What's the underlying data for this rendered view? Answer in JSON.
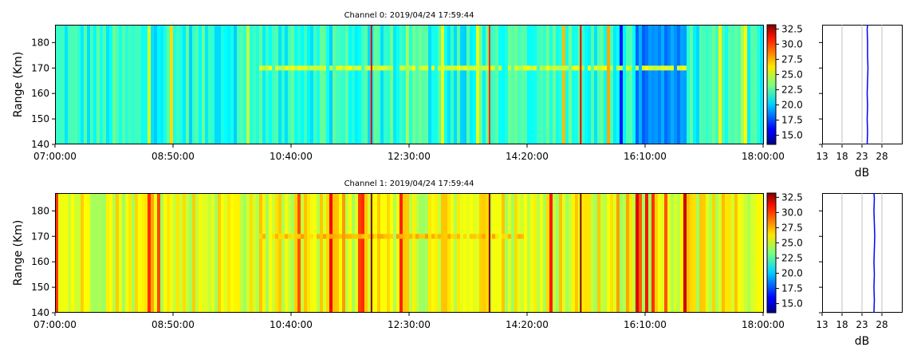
{
  "chart_data": [
    {
      "type": "heatmap",
      "title": "Channel 0: 2019/04/24 17:59:44",
      "xlabel": "",
      "ylabel": "Range (Km)",
      "x_ticks": [
        "07:00:00",
        "08:50:00",
        "10:40:00",
        "12:30:00",
        "14:20:00",
        "16:10:00",
        "18:00:00"
      ],
      "x_range": [
        "07:00:00",
        "18:00:00"
      ],
      "y_ticks": [
        140,
        150,
        160,
        170,
        180
      ],
      "ylim": [
        140,
        187
      ],
      "colorbar": {
        "ticks": [
          "15.0",
          "17.5",
          "20.0",
          "22.5",
          "25.0",
          "27.5",
          "30.0",
          "32.5"
        ],
        "range": [
          13.5,
          33.2
        ],
        "colormap": "jet"
      },
      "base_level_db": 21.5,
      "layer": {
        "range_km": 170,
        "level_db": 25,
        "start": "10:10:00",
        "end": "16:50:00"
      },
      "bright_stripes": [
        {
          "time": "11:55:00",
          "level_db": 31
        },
        {
          "time": "13:45:00",
          "level_db": 30
        },
        {
          "time": "15:10:00",
          "level_db": 31
        }
      ],
      "dark_bands": [
        {
          "start": "15:45:00",
          "end": "15:50:00",
          "level_db": 16.5
        },
        {
          "start": "16:00:00",
          "end": "16:50:00",
          "level_db": 18.5
        }
      ],
      "profile": {
        "xlabel": "dB",
        "x_ticks": [
          13,
          18,
          23,
          28
        ],
        "xlim": [
          13,
          33
        ],
        "ylim": [
          140,
          187
        ],
        "grid": true,
        "range_km": [
          140,
          145,
          150,
          155,
          160,
          165,
          170,
          175,
          180,
          185,
          187
        ],
        "db": [
          24.3,
          24.4,
          24.3,
          24.4,
          24.3,
          24.4,
          24.5,
          24.4,
          24.4,
          24.3,
          24.4
        ]
      }
    },
    {
      "type": "heatmap",
      "title": "Channel 1: 2019/04/24 17:59:44",
      "xlabel": "",
      "ylabel": "Range (Km)",
      "x_ticks": [
        "07:00:00",
        "08:50:00",
        "10:40:00",
        "12:30:00",
        "14:20:00",
        "16:10:00",
        "18:00:00"
      ],
      "x_range": [
        "07:00:00",
        "18:00:00"
      ],
      "y_ticks": [
        140,
        150,
        160,
        170,
        180
      ],
      "ylim": [
        140,
        187
      ],
      "colorbar": {
        "ticks": [
          "15.0",
          "17.5",
          "20.0",
          "22.5",
          "25.0",
          "27.5",
          "30.0",
          "32.5"
        ],
        "range": [
          13.5,
          33.2
        ],
        "colormap": "jet"
      },
      "base_level_db": 25.5,
      "layer": {
        "range_km": 170,
        "level_db": 27,
        "start": "10:10:00",
        "end": "14:20:00"
      },
      "bright_stripes": [
        {
          "time": "11:55:00",
          "level_db": 33
        },
        {
          "time": "13:45:00",
          "level_db": 33
        },
        {
          "time": "15:10:00",
          "level_db": 33
        }
      ],
      "dark_bands": [],
      "profile": {
        "xlabel": "dB",
        "x_ticks": [
          13,
          18,
          23,
          28
        ],
        "xlim": [
          13,
          33
        ],
        "ylim": [
          140,
          187
        ],
        "grid": true,
        "range_km": [
          140,
          145,
          150,
          155,
          160,
          165,
          170,
          175,
          180,
          185,
          187
        ],
        "db": [
          26.0,
          26.1,
          26.0,
          26.1,
          26.0,
          26.1,
          26.2,
          26.1,
          26.0,
          26.1,
          26.0
        ]
      }
    }
  ]
}
